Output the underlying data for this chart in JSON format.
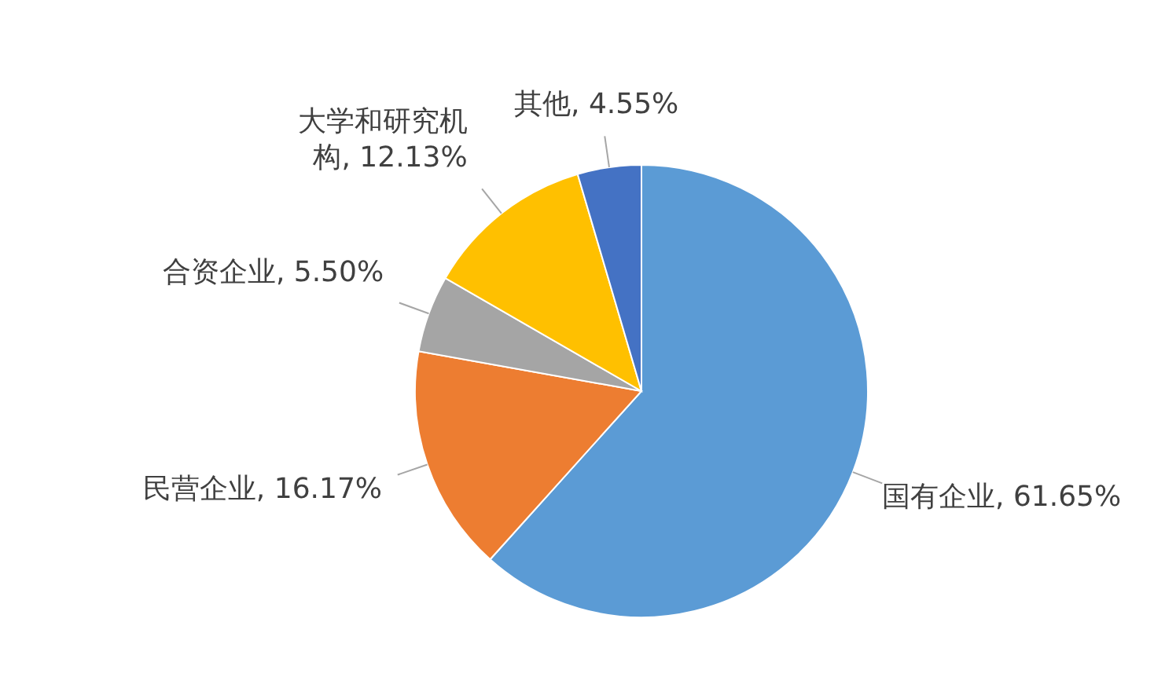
{
  "chart_data": {
    "type": "pie",
    "categories": [
      "国有企业",
      "民营企业",
      "合资企业",
      "大学和研究机构",
      "其他"
    ],
    "values": [
      61.65,
      16.17,
      5.5,
      12.13,
      4.55
    ],
    "colors": [
      "#5b9bd5",
      "#ed7d31",
      "#a5a5a5",
      "#ffc000",
      "#4472c4"
    ],
    "value_labels": [
      "61.65%",
      "16.17%",
      "5.50%",
      "12.13%",
      "4.55%"
    ]
  }
}
